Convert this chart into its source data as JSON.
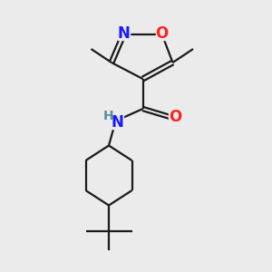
{
  "bg_color": "#ebebeb",
  "bond_color": "#1a1a1a",
  "bond_width": 1.6,
  "atom_colors": {
    "N_ring": "#1a1aff",
    "O_ring": "#ff2020",
    "NH_N": "#1a1aff",
    "NH_H": "#5a9090",
    "O_carbonyl": "#ff2020"
  },
  "figsize": [
    3.0,
    3.0
  ],
  "dpi": 100,
  "xlim": [
    0,
    10
  ],
  "ylim": [
    0,
    10
  ]
}
